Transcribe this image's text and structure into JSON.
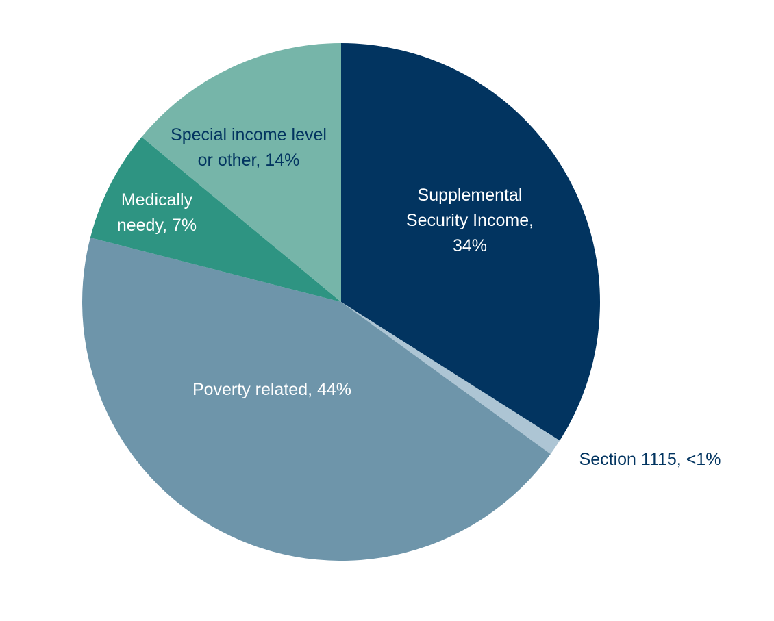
{
  "chart_data": {
    "type": "pie",
    "title": "",
    "start_angle_deg": 0,
    "direction": "clockwise",
    "slices": [
      {
        "name": "Supplemental Security Income",
        "value": 34,
        "label_lines": [
          "Supplemental",
          "Security Income,",
          "34%"
        ],
        "color": "#023460",
        "label_color": "#ffffff"
      },
      {
        "name": "Section 1115",
        "value": 1,
        "label_lines": [
          "Section 1115, <1%"
        ],
        "color": "#adc5d4",
        "label_color": "#023460"
      },
      {
        "name": "Poverty related",
        "value": 44,
        "label_lines": [
          "Poverty related, 44%"
        ],
        "color": "#6e95aa",
        "label_color": "#ffffff"
      },
      {
        "name": "Medically needy",
        "value": 7,
        "label_lines": [
          "Medically",
          "needy, 7%"
        ],
        "color": "#2e9482",
        "label_color": "#ffffff"
      },
      {
        "name": "Special income level or other",
        "value": 14,
        "label_lines": [
          "Special income level",
          "or other, 14%"
        ],
        "color": "#76b5a9",
        "label_color": "#023460"
      }
    ]
  }
}
